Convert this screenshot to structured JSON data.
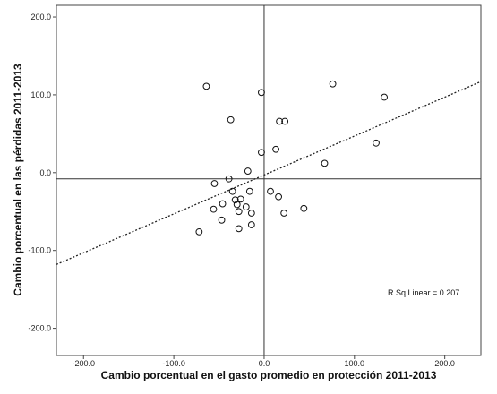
{
  "chart_data": {
    "type": "scatter",
    "xlabel": "Cambio porcentual en el gasto promedio en protección 2011-2013",
    "ylabel": "Cambio porcentual en las pérdidas 2011-2013",
    "xlim": [
      -230,
      240
    ],
    "ylim": [
      -235,
      215
    ],
    "x_ticks": [
      "-200.0",
      "-100.0",
      "0.0",
      "100.0",
      "200.0"
    ],
    "y_ticks": [
      "200.0",
      "100.0",
      "0.0",
      "-100.0",
      "-200.0"
    ],
    "x_tick_values": [
      -200,
      -100,
      0,
      100,
      200
    ],
    "y_tick_values": [
      200,
      100,
      0,
      -100,
      -200
    ],
    "reference_lines": {
      "x": 0,
      "y": -8
    },
    "grid": false,
    "fit_line": {
      "style": "dotted",
      "x1": -230,
      "y1": -118,
      "x2": 240,
      "y2": 117
    },
    "annotation": "R Sq Linear = 0.207",
    "points": [
      {
        "x": -64,
        "y": 111
      },
      {
        "x": -3,
        "y": 103
      },
      {
        "x": 76,
        "y": 114
      },
      {
        "x": 133,
        "y": 97
      },
      {
        "x": -37,
        "y": 68
      },
      {
        "x": 17,
        "y": 66
      },
      {
        "x": 23,
        "y": 66
      },
      {
        "x": 13,
        "y": 30
      },
      {
        "x": -3,
        "y": 26
      },
      {
        "x": 124,
        "y": 38
      },
      {
        "x": 67,
        "y": 12
      },
      {
        "x": -18,
        "y": 2
      },
      {
        "x": -39,
        "y": -8
      },
      {
        "x": -55,
        "y": -14
      },
      {
        "x": -35,
        "y": -24
      },
      {
        "x": -16,
        "y": -24
      },
      {
        "x": 7,
        "y": -24
      },
      {
        "x": 16,
        "y": -31
      },
      {
        "x": -32,
        "y": -35
      },
      {
        "x": -26,
        "y": -34
      },
      {
        "x": -30,
        "y": -41
      },
      {
        "x": -46,
        "y": -40
      },
      {
        "x": -20,
        "y": -44
      },
      {
        "x": -56,
        "y": -47
      },
      {
        "x": -28,
        "y": -50
      },
      {
        "x": -14,
        "y": -52
      },
      {
        "x": 22,
        "y": -52
      },
      {
        "x": 44,
        "y": -46
      },
      {
        "x": -47,
        "y": -61
      },
      {
        "x": -14,
        "y": -67
      },
      {
        "x": -28,
        "y": -72
      },
      {
        "x": -72,
        "y": -76
      }
    ]
  }
}
